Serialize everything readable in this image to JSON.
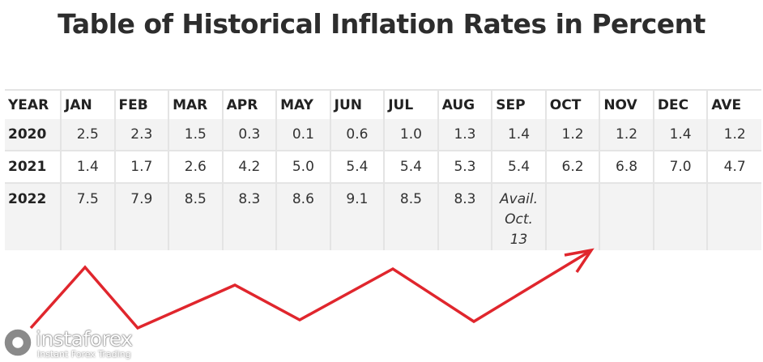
{
  "header": {
    "title": "Table of Historical Inflation Rates in Percent"
  },
  "table": {
    "columns": [
      "YEAR",
      "JAN",
      "FEB",
      "MAR",
      "APR",
      "MAY",
      "JUN",
      "JUL",
      "AUG",
      "SEP",
      "OCT",
      "NOV",
      "DEC",
      "AVE"
    ],
    "rows": [
      [
        "2020",
        "2.5",
        "2.3",
        "1.5",
        "0.3",
        "0.1",
        "0.6",
        "1.0",
        "1.3",
        "1.4",
        "1.2",
        "1.2",
        "1.4",
        "1.2"
      ],
      [
        "2021",
        "1.4",
        "1.7",
        "2.6",
        "4.2",
        "5.0",
        "5.4",
        "5.4",
        "5.3",
        "5.4",
        "6.2",
        "6.8",
        "7.0",
        "4.7"
      ],
      [
        "2022",
        "7.5",
        "7.9",
        "8.5",
        "8.3",
        "8.6",
        "9.1",
        "8.5",
        "8.3",
        "Avail. Oct. 13"
      ]
    ]
  },
  "logo": {
    "name": "instaforex",
    "tagline": "Instant Forex Trading"
  }
}
